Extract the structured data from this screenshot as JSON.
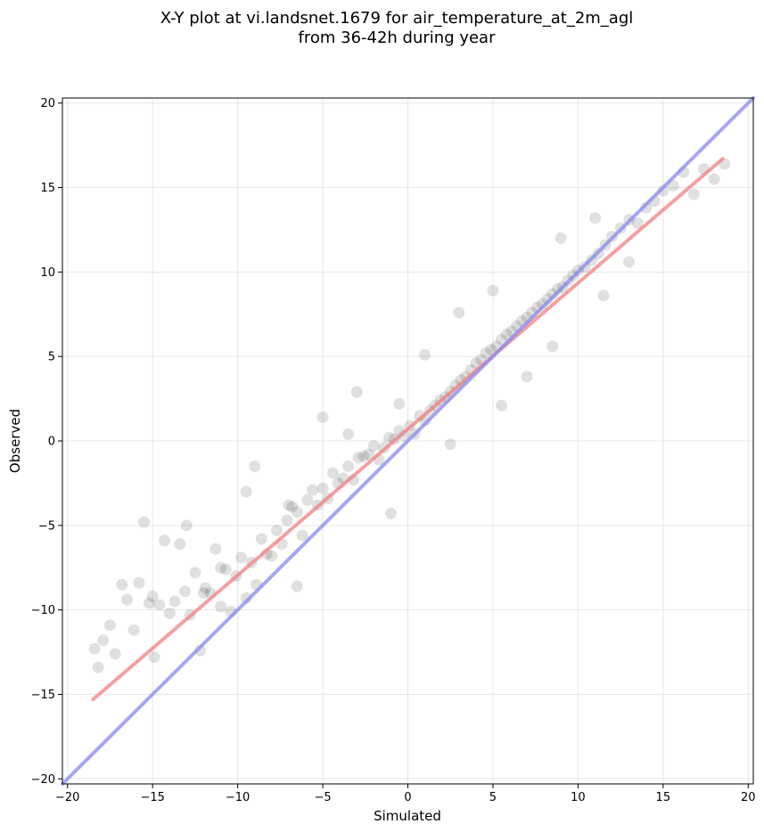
{
  "chart_data": {
    "type": "scatter",
    "title": "X-Y plot at vi.landsnet.1679 for air_temperature_at_2m_agl",
    "subtitle": "from 36-42h during year",
    "xlabel": "Simulated",
    "ylabel": "Observed",
    "xlim": [
      -20.3,
      20.3
    ],
    "ylim": [
      -20.3,
      20.3
    ],
    "x_ticks": [
      -20,
      -15,
      -10,
      -5,
      0,
      5,
      10,
      15,
      20
    ],
    "y_ticks": [
      -20,
      -15,
      -10,
      -5,
      0,
      5,
      10,
      15,
      20
    ],
    "x_tick_labels": [
      "−20",
      "−15",
      "−10",
      "−5",
      "0",
      "5",
      "10",
      "15",
      "20"
    ],
    "y_tick_labels": [
      "−20",
      "−15",
      "−10",
      "−5",
      "0",
      "5",
      "10",
      "15",
      "20"
    ],
    "grid": true,
    "point_color": "#000000",
    "point_alpha": 0.06,
    "series": [
      {
        "kind": "scatter",
        "x": [
          -18.4,
          -18.2,
          -17.9,
          -17.5,
          -17.2,
          -16.8,
          -16.5,
          -16.1,
          -15.8,
          -15.5,
          -15.2,
          -14.9,
          -14.6,
          -14.3,
          -14.0,
          -13.7,
          -13.4,
          -13.1,
          -12.8,
          -12.5,
          -12.2,
          -11.9,
          -11.6,
          -11.3,
          -11.0,
          -10.7,
          -10.4,
          -10.1,
          -9.8,
          -9.5,
          -9.2,
          -8.9,
          -8.6,
          -8.3,
          -8.0,
          -7.7,
          -7.4,
          -7.1,
          -6.8,
          -6.5,
          -6.2,
          -5.9,
          -5.6,
          -5.3,
          -5.0,
          -4.7,
          -4.4,
          -4.1,
          -3.8,
          -3.5,
          -3.2,
          -2.9,
          -2.6,
          -2.3,
          -2.0,
          -1.7,
          -1.4,
          -1.1,
          -0.8,
          -0.5,
          -0.2,
          0.1,
          0.4,
          0.7,
          1.0,
          1.3,
          1.6,
          1.9,
          2.2,
          2.5,
          2.8,
          3.1,
          3.4,
          3.7,
          4.0,
          4.3,
          4.6,
          4.9,
          5.2,
          5.5,
          5.8,
          6.1,
          6.4,
          6.7,
          7.0,
          7.3,
          7.6,
          7.9,
          8.2,
          8.5,
          8.8,
          9.1,
          9.4,
          9.7,
          10.0,
          10.4,
          10.8,
          11.2,
          11.6,
          12.0,
          12.5,
          13.0,
          13.5,
          14.0,
          14.5,
          15.0,
          15.6,
          16.2,
          16.8,
          17.4,
          18.0,
          18.6,
          -15.0,
          -13.0,
          -11.0,
          -9.0,
          -7.0,
          -5.0,
          -3.0,
          -1.0,
          1.0,
          3.0,
          5.0,
          7.0,
          9.0,
          11.0,
          13.0,
          -12.0,
          -9.5,
          -6.5,
          -3.5,
          -0.5,
          2.5,
          5.5,
          8.5,
          11.5
        ],
        "y": [
          -12.3,
          -13.4,
          -11.8,
          -10.9,
          -12.6,
          -8.5,
          -9.4,
          -11.2,
          -8.4,
          -4.8,
          -9.6,
          -12.8,
          -9.7,
          -5.9,
          -10.2,
          -9.5,
          -6.1,
          -8.9,
          -10.3,
          -7.8,
          -12.4,
          -8.7,
          -9.0,
          -6.4,
          -9.8,
          -7.6,
          -10.1,
          -8.0,
          -6.9,
          -9.3,
          -7.2,
          -8.5,
          -5.8,
          -6.7,
          -6.8,
          -5.3,
          -6.1,
          -4.7,
          -3.9,
          -4.2,
          -5.6,
          -3.5,
          -2.9,
          -3.8,
          -2.8,
          -3.4,
          -1.9,
          -2.5,
          -2.2,
          -1.5,
          -2.3,
          -1.0,
          -0.9,
          -0.8,
          -0.3,
          -1.1,
          -0.4,
          0.2,
          0.1,
          0.6,
          0.3,
          0.9,
          0.4,
          1.5,
          1.2,
          1.8,
          2.1,
          2.4,
          2.6,
          2.9,
          3.3,
          3.6,
          3.8,
          4.2,
          4.6,
          4.8,
          5.2,
          5.4,
          5.6,
          6.0,
          6.3,
          6.5,
          6.8,
          7.1,
          7.3,
          7.6,
          7.9,
          8.1,
          8.4,
          8.7,
          9.0,
          9.1,
          9.5,
          9.8,
          10.1,
          10.3,
          10.7,
          11.1,
          11.6,
          12.1,
          12.6,
          13.1,
          12.9,
          13.8,
          14.2,
          14.8,
          15.1,
          15.9,
          14.6,
          16.1,
          15.5,
          16.4,
          -9.2,
          -5.0,
          -7.5,
          -1.5,
          -3.8,
          1.4,
          2.9,
          -4.3,
          5.1,
          7.6,
          8.9,
          3.8,
          12.0,
          13.2,
          10.6,
          -9.0,
          -3.0,
          -8.6,
          0.4,
          2.2,
          -0.2,
          2.1,
          5.6,
          8.6
        ],
        "name": ""
      },
      {
        "kind": "line",
        "label": "",
        "color": "#f08080",
        "x": [
          -18.5,
          18.5
        ],
        "y": [
          -15.3,
          16.7
        ]
      },
      {
        "kind": "line",
        "label": "",
        "color": "#8888ee",
        "x": [
          -20.3,
          20.3
        ],
        "y": [
          -20.3,
          20.3
        ]
      }
    ]
  }
}
